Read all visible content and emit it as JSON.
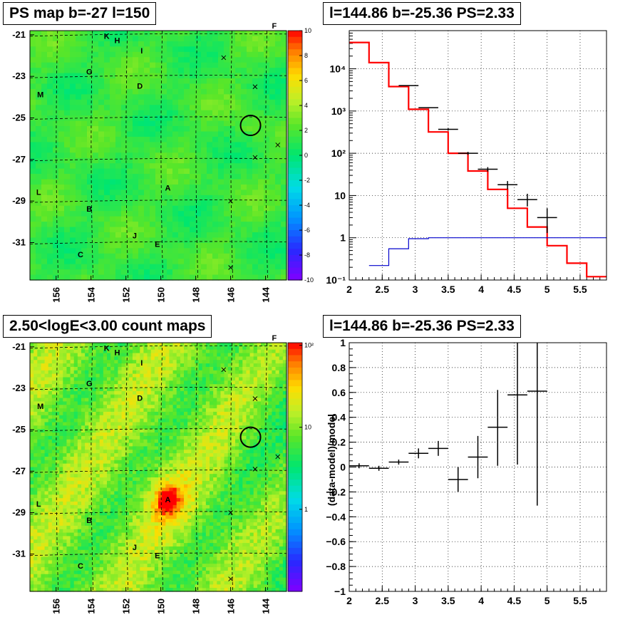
{
  "panels": {
    "ps_map": {
      "title": "PS map b=-27 l=150",
      "y_ticks": [
        "-21",
        "-23",
        "-25",
        "-27",
        "-29",
        "-31"
      ],
      "x_ticks": [
        "156",
        "154",
        "152",
        "150",
        "148",
        "146",
        "144"
      ],
      "colorbar_ticks": [
        "10",
        "8",
        "6",
        "4",
        "2",
        "0",
        "-2",
        "-4",
        "-6",
        "-8",
        "-10"
      ],
      "source_labels": [
        "K",
        "H",
        "I",
        "G",
        "D",
        "M",
        "A",
        "L",
        "B",
        "J",
        "E",
        "C",
        "F"
      ]
    },
    "count_map": {
      "title": "2.50<logE<3.00 count maps",
      "y_ticks": [
        "-21",
        "-23",
        "-25",
        "-27",
        "-29",
        "-31"
      ],
      "x_ticks": [
        "156",
        "154",
        "152",
        "150",
        "148",
        "146",
        "144"
      ],
      "colorbar_ticks": [
        "10²",
        "10",
        "1"
      ],
      "source_labels": [
        "K",
        "H",
        "I",
        "G",
        "D",
        "M",
        "A",
        "L",
        "B",
        "J",
        "E",
        "C",
        "F"
      ]
    },
    "spectrum": {
      "title": "l=144.86 b=-25.36 PS=2.33"
    },
    "residual": {
      "title": "l=144.86 b=-25.36 PS=2.33"
    }
  },
  "colors": {
    "model": "#ff0000",
    "data": "#000000",
    "ps_component": "#0000cc",
    "grid": "#000000"
  },
  "chart_data": [
    {
      "type": "heatmap",
      "title": "PS map b=-27 l=150",
      "xlabel": "",
      "ylabel": "",
      "xlim": [
        157.5,
        142.8
      ],
      "ylim": [
        -32.8,
        -20.8
      ],
      "zlim": [
        -10,
        10
      ],
      "x_ticks": [
        156,
        154,
        152,
        150,
        148,
        146,
        144
      ],
      "y_ticks": [
        -21,
        -23,
        -25,
        -27,
        -29,
        -31
      ],
      "grid": true,
      "markers": [
        {
          "label": "K",
          "l": 153.1,
          "b": -21.2
        },
        {
          "label": "H",
          "l": 152.5,
          "b": -21.4
        },
        {
          "label": "I",
          "l": 151.1,
          "b": -21.9
        },
        {
          "label": "G",
          "l": 154.1,
          "b": -22.9
        },
        {
          "label": "D",
          "l": 151.2,
          "b": -23.6
        },
        {
          "label": "M",
          "l": 156.9,
          "b": -24.0
        },
        {
          "label": "A",
          "l": 149.6,
          "b": -28.5
        },
        {
          "label": "L",
          "l": 157.0,
          "b": -28.7
        },
        {
          "label": "B",
          "l": 154.1,
          "b": -29.5
        },
        {
          "label": "J",
          "l": 151.5,
          "b": -30.8
        },
        {
          "label": "E",
          "l": 150.2,
          "b": -31.2
        },
        {
          "label": "C",
          "l": 154.6,
          "b": -31.7
        },
        {
          "label": "F",
          "l": 143.5,
          "b": -20.7
        }
      ],
      "crosses": [
        {
          "l": 146.4,
          "b": -22.1
        },
        {
          "l": 144.6,
          "b": -23.5
        },
        {
          "l": 144.6,
          "b": -26.9
        },
        {
          "l": 143.3,
          "b": -26.3
        },
        {
          "l": 146.0,
          "b": -29.0
        },
        {
          "l": 146.0,
          "b": -32.2
        }
      ],
      "circle": {
        "l": 144.86,
        "b": -25.36
      }
    },
    {
      "type": "bar",
      "title": "l=144.86 b=-25.36 PS=2.33",
      "xlabel": "",
      "ylabel": "",
      "xlim": [
        2,
        5.9
      ],
      "ylim": [
        0.1,
        80000
      ],
      "log_y": true,
      "grid": true,
      "x_ticks": [
        2,
        2.5,
        3,
        3.5,
        4,
        4.5,
        5,
        5.5
      ],
      "y_ticks": [
        "10⁻¹",
        "1",
        "10",
        "10²",
        "10³",
        "10⁴"
      ],
      "series": [
        {
          "kind": "step",
          "color": "#ff0000",
          "edges": [
            2.0,
            2.3,
            2.6,
            2.9,
            3.2,
            3.5,
            3.8,
            4.1,
            4.4,
            4.7,
            5.0,
            5.3,
            5.6,
            5.9
          ],
          "values": [
            42000,
            14000,
            3800,
            1100,
            320,
            100,
            38,
            14,
            5,
            1.8,
            0.65,
            0.25,
            0.12
          ]
        },
        {
          "kind": "step",
          "color": "#0000cc",
          "edges": [
            2.3,
            2.6,
            2.9,
            3.2,
            3.5,
            3.8,
            4.1,
            4.4,
            4.7,
            5.0,
            5.9
          ],
          "values": [
            0.22,
            0.55,
            0.95,
            1.0,
            1.0,
            1.0,
            1.0,
            1.0,
            1.0,
            1.0
          ]
        },
        {
          "kind": "points",
          "color": "#000000",
          "x": [
            2.9,
            3.2,
            3.5,
            3.8,
            4.1,
            4.4,
            4.7,
            5.0
          ],
          "x_halfwidth": 0.15,
          "y": [
            4000,
            1200,
            370,
            100,
            42,
            18,
            8,
            3
          ],
          "y_low": [
            3940,
            1170,
            350,
            92,
            37,
            14,
            5.5,
            1.3
          ],
          "y_high": [
            4060,
            1230,
            390,
            108,
            47,
            22,
            11,
            5
          ]
        }
      ]
    },
    {
      "type": "scatter",
      "title": "l=144.86 b=-25.36 PS=2.33",
      "xlabel": "",
      "ylabel": "(data-model)/model",
      "xlim": [
        2,
        5.9
      ],
      "ylim": [
        -1,
        1
      ],
      "grid": true,
      "x_ticks": [
        2,
        2.5,
        3,
        3.5,
        4,
        4.5,
        5,
        5.5
      ],
      "y_ticks": [
        -1,
        -0.8,
        -0.6,
        -0.4,
        -0.2,
        0,
        0.2,
        0.4,
        0.6,
        0.8,
        1
      ],
      "series": [
        {
          "x": [
            2.15,
            2.45,
            2.75,
            3.05,
            3.35,
            3.65,
            3.95,
            4.25,
            4.55,
            4.85
          ],
          "x_halfwidth": 0.15,
          "y": [
            0.01,
            -0.01,
            0.04,
            0.11,
            0.15,
            -0.1,
            0.08,
            0.32,
            0.58,
            0.61
          ],
          "y_low": [
            -0.01,
            -0.03,
            0.02,
            0.07,
            0.09,
            -0.2,
            -0.09,
            0.01,
            0.02,
            -0.31
          ],
          "y_high": [
            0.03,
            0.01,
            0.06,
            0.15,
            0.21,
            0.0,
            0.25,
            0.62,
            1.0,
            1.0
          ]
        }
      ]
    },
    {
      "type": "heatmap",
      "title": "2.50<logE<3.00 count maps",
      "xlabel": "",
      "ylabel": "",
      "xlim": [
        157.5,
        142.8
      ],
      "ylim": [
        -32.8,
        -20.8
      ],
      "zscale": "log",
      "zlim": [
        0.15,
        150
      ],
      "x_ticks": [
        156,
        154,
        152,
        150,
        148,
        146,
        144
      ],
      "y_ticks": [
        -21,
        -23,
        -25,
        -27,
        -29,
        -31
      ],
      "grid": true,
      "hotspot": {
        "l": 149.6,
        "b": -28.4,
        "label": "A"
      }
    }
  ]
}
